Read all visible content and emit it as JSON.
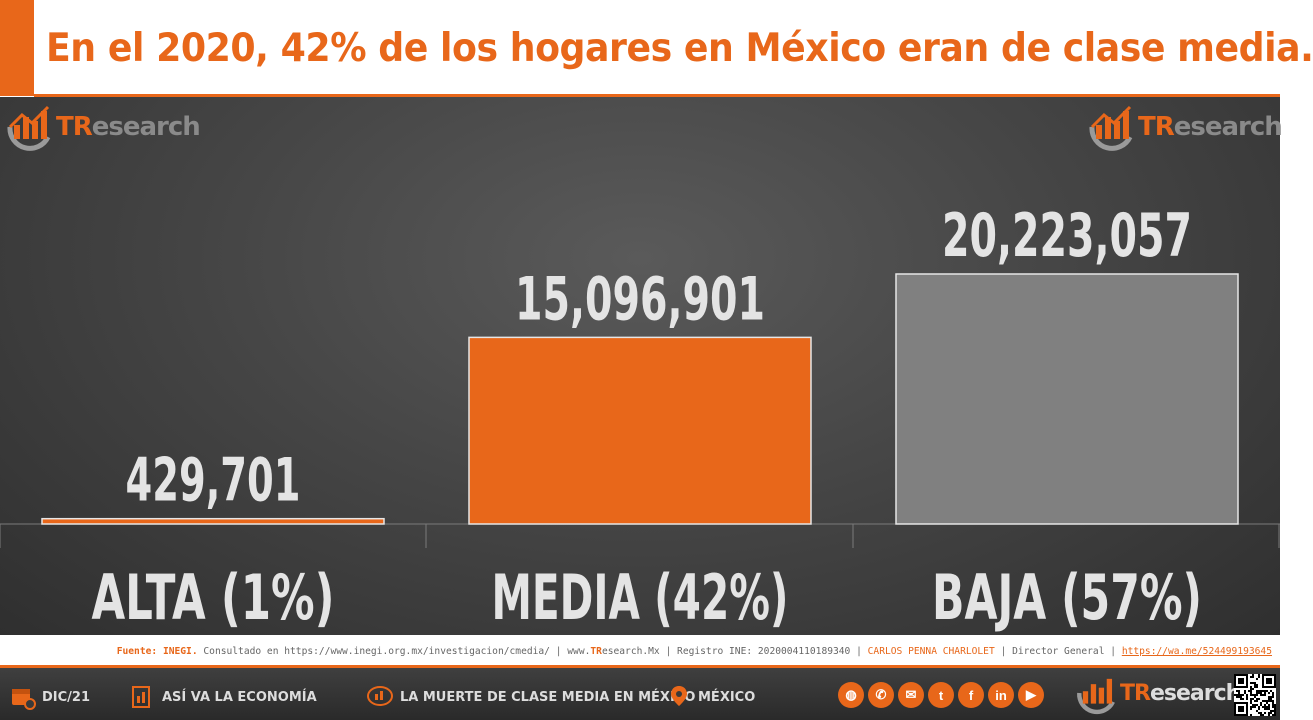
{
  "header": {
    "title": "En el 2020, 42% de los hogares en México eran de clase media."
  },
  "brand": {
    "logo_tr": "TR",
    "logo_rest": "esearch"
  },
  "chart_data": {
    "type": "bar",
    "title": "En el 2020, 42% de los hogares en México eran de clase media.",
    "categories": [
      "ALTA (1%)",
      "MEDIA (42%)",
      "BAJA (57%)"
    ],
    "values": [
      429701,
      15096901,
      20223057
    ],
    "value_labels": [
      "429,701",
      "15,096,901",
      "20,223,057"
    ],
    "colors": [
      "#e8671a",
      "#e8671a",
      "#808080"
    ],
    "ylim": [
      0,
      20223057
    ],
    "grid": false,
    "legend": "none"
  },
  "source": {
    "label": "Fuente:",
    "org": "INEGI.",
    "consulted": "Consultado en https://www.inegi.org.mx/investigacion/cmedia/",
    "web_prefix": "www.",
    "web_tr": "TR",
    "web_rest": "esearch.Mx",
    "registro": "Registro INE: 2020004110189340",
    "author": "CARLOS PENNA CHARLOLET",
    "role": "Director General",
    "link": "https://wa.me/524499193645"
  },
  "footer": {
    "date": "DIC/21",
    "section": "ASÍ VA LA ECONOMÍA",
    "topic": "LA MUERTE DE CLASE MEDIA EN MÉXICO",
    "place": "MÉXICO",
    "socials": [
      "globe-icon",
      "phone-icon",
      "mail-icon",
      "twitter-icon",
      "facebook-icon",
      "linkedin-icon",
      "youtube-icon"
    ],
    "social_glyphs": [
      "◍",
      "✆",
      "✉",
      "t",
      "f",
      "in",
      "▶"
    ]
  }
}
